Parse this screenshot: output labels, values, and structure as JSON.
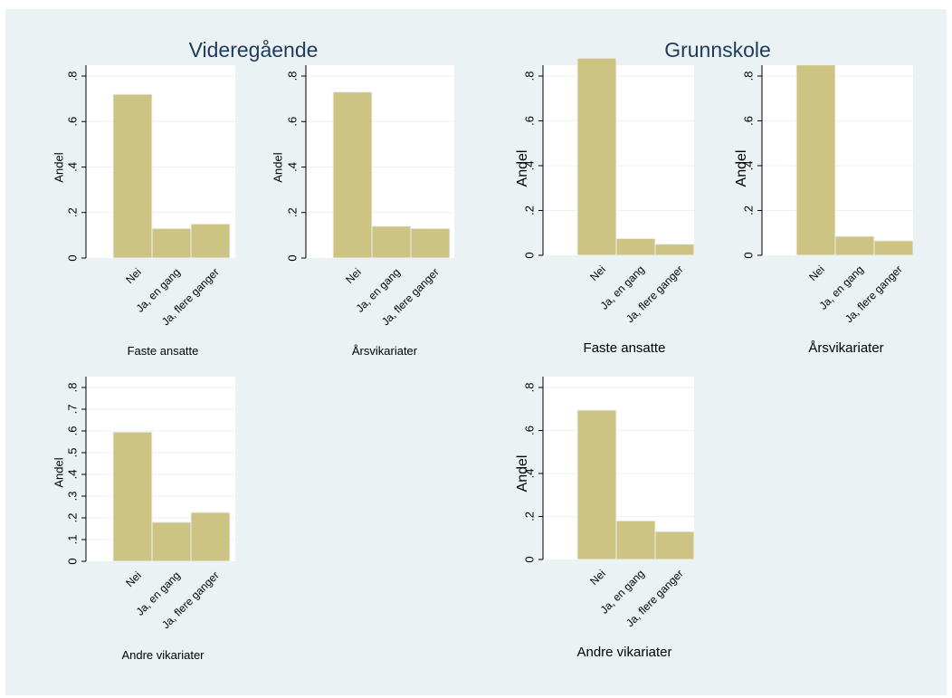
{
  "groups": [
    {
      "title": "Videregående"
    },
    {
      "title": "Grunnskole"
    }
  ],
  "colors": {
    "background": "#eaf2f3",
    "plot_background": "#ffffff",
    "bar_fill": "#cdc382",
    "bar_stroke": "#eaf2f3",
    "grid": "#eaf2f3",
    "axis": "#000000",
    "title": "#1e3b5c"
  },
  "chart_data": [
    {
      "type": "bar",
      "group": "Videregående",
      "xlabel": "Faste ansatte",
      "ylabel": "Andel",
      "categories": [
        "Nei",
        "Ja, en gang",
        "Ja, flere ganger"
      ],
      "values": [
        0.72,
        0.13,
        0.15
      ],
      "ylim": [
        0,
        0.8
      ],
      "yticks": [
        0,
        0.2,
        0.4,
        0.6,
        0.8
      ],
      "ytick_labels": [
        "0",
        ".2",
        ".4",
        ".6",
        ".8"
      ],
      "grid": true
    },
    {
      "type": "bar",
      "group": "Videregående",
      "xlabel": "Årsvikariater",
      "ylabel": "Andel",
      "categories": [
        "Nei",
        "Ja, en gang",
        "Ja, flere ganger"
      ],
      "values": [
        0.73,
        0.14,
        0.13
      ],
      "ylim": [
        0,
        0.8
      ],
      "yticks": [
        0,
        0.2,
        0.4,
        0.6,
        0.8
      ],
      "ytick_labels": [
        "0",
        ".2",
        ".4",
        ".6",
        ".8"
      ],
      "grid": true
    },
    {
      "type": "bar",
      "group": "Grunnskole",
      "xlabel": "Faste ansatte",
      "ylabel": "Andel",
      "categories": [
        "Nei",
        "Ja, en gang",
        "Ja, flere ganger"
      ],
      "values": [
        0.88,
        0.075,
        0.05
      ],
      "ylim": [
        0,
        0.8
      ],
      "yticks": [
        0,
        0.2,
        0.4,
        0.6,
        0.8
      ],
      "ytick_labels": [
        "0",
        ".2",
        ".4",
        ".6",
        ".8"
      ],
      "grid": true
    },
    {
      "type": "bar",
      "group": "Grunnskole",
      "xlabel": "Årsvikariater",
      "ylabel": "Andel",
      "categories": [
        "Nei",
        "Ja, en gang",
        "Ja, flere ganger"
      ],
      "values": [
        0.85,
        0.085,
        0.065
      ],
      "ylim": [
        0,
        0.8
      ],
      "yticks": [
        0,
        0.2,
        0.4,
        0.6,
        0.8
      ],
      "ytick_labels": [
        "0",
        ".2",
        ".4",
        ".6",
        ".8"
      ],
      "grid": true
    },
    {
      "type": "bar",
      "group": "Videregående",
      "xlabel": "Andre vikariater",
      "ylabel": "Andel",
      "categories": [
        "Nei",
        "Ja, en gang",
        "Ja, flere ganger"
      ],
      "values": [
        0.595,
        0.18,
        0.225
      ],
      "ylim": [
        0,
        0.8
      ],
      "yticks": [
        0,
        0.1,
        0.2,
        0.3,
        0.4,
        0.5,
        0.6,
        0.7,
        0.8
      ],
      "ytick_labels": [
        "0",
        ".1",
        ".2",
        ".3",
        ".4",
        ".5",
        ".6",
        ".7",
        ".8"
      ],
      "grid": true
    },
    {
      "type": "bar",
      "group": "Grunnskole",
      "xlabel": "Andre vikariater",
      "ylabel": "Andel",
      "categories": [
        "Nei",
        "Ja, en gang",
        "Ja, flere ganger"
      ],
      "values": [
        0.695,
        0.18,
        0.13
      ],
      "ylim": [
        0,
        0.8
      ],
      "yticks": [
        0,
        0.2,
        0.4,
        0.6,
        0.8
      ],
      "ytick_labels": [
        "0",
        ".2",
        ".4",
        ".6",
        ".8"
      ],
      "grid": true
    }
  ]
}
